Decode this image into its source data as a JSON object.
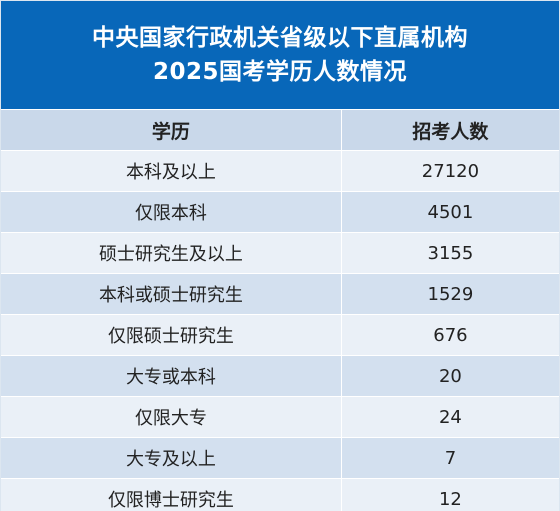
{
  "title": {
    "line1": "中央国家行政机关省级以下直属机构",
    "line2": "2025国考学历人数情况"
  },
  "table": {
    "headers": [
      "学历",
      "招考人数"
    ],
    "rows": [
      [
        "本科及以上",
        "27120"
      ],
      [
        "仅限本科",
        "4501"
      ],
      [
        "硕士研究生及以上",
        "3155"
      ],
      [
        "本科或硕士研究生",
        "1529"
      ],
      [
        "仅限硕士研究生",
        "676"
      ],
      [
        "大专或本科",
        "20"
      ],
      [
        "仅限大专",
        "24"
      ],
      [
        "大专及以上",
        "7"
      ],
      [
        "仅限博士研究生",
        "12"
      ]
    ]
  },
  "colors": {
    "title_bg": "#0867b9",
    "header_bg": "#c9d8ea",
    "row_light": "#eaf0f7",
    "row_dark": "#d3e0ef"
  }
}
